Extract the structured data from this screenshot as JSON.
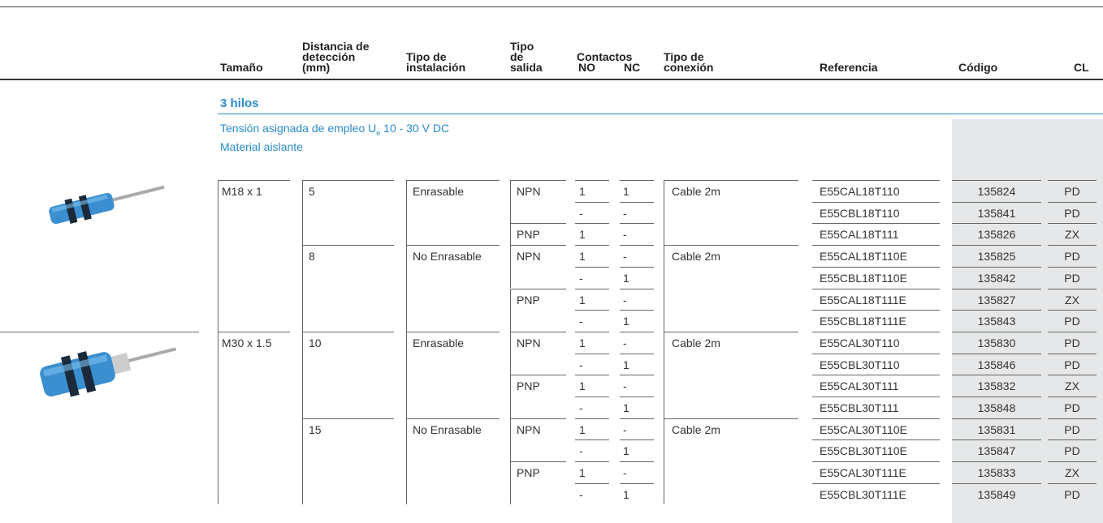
{
  "header": {
    "columns": [
      "Tamaño",
      "Distancia de\ndetección\n(mm)",
      "Tipo de\ninstalación",
      "Tipo\nde\nsalida",
      "Tipo de\nconexión",
      "Referencia",
      "Código",
      "CL"
    ],
    "contacts": {
      "label": "Contactos",
      "no": "NO",
      "nc": "NC"
    }
  },
  "section": {
    "title": "3 hilos",
    "voltage_prefix": "Tensión asignada de empleo U",
    "voltage_sub": "e",
    "voltage_suffix": " 10 - 30 V DC",
    "material": "Material aislante"
  },
  "table": {
    "groups": [
      {
        "size": "M18 x 1",
        "distances": [
          {
            "distance": "5",
            "installation": "Enrasable",
            "connection": "Cable 2m",
            "outputs": [
              {
                "type": "NPN",
                "rows": [
                  [
                    "1",
                    "1",
                    "E55CAL18T110",
                    "135824",
                    "PD"
                  ],
                  [
                    "-",
                    "-",
                    "E55CBL18T110",
                    "135841",
                    "PD"
                  ]
                ]
              },
              {
                "type": "PNP",
                "rows": [
                  [
                    "1",
                    "-",
                    "E55CAL18T111",
                    "135826",
                    "ZX"
                  ]
                ]
              }
            ]
          },
          {
            "distance": "8",
            "installation": "No Enrasable",
            "connection": "Cable 2m",
            "outputs": [
              {
                "type": "NPN",
                "rows": [
                  [
                    "1",
                    "-",
                    "E55CAL18T110E",
                    "135825",
                    "PD"
                  ],
                  [
                    "-",
                    "1",
                    "E55CBL18T110E",
                    "135842",
                    "PD"
                  ]
                ]
              },
              {
                "type": "PNP",
                "rows": [
                  [
                    "1",
                    "-",
                    "E55CAL18T111E",
                    "135827",
                    "ZX"
                  ],
                  [
                    "-",
                    "1",
                    "E55CBL18T111E",
                    "135843",
                    "PD"
                  ]
                ]
              }
            ]
          }
        ]
      },
      {
        "size": "M30 x 1.5",
        "distances": [
          {
            "distance": "10",
            "installation": "Enrasable",
            "connection": "Cable 2m",
            "outputs": [
              {
                "type": "NPN",
                "rows": [
                  [
                    "1",
                    "-",
                    "E55CAL30T110",
                    "135830",
                    "PD"
                  ],
                  [
                    "-",
                    "1",
                    "E55CBL30T110",
                    "135846",
                    "PD"
                  ]
                ]
              },
              {
                "type": "PNP",
                "rows": [
                  [
                    "1",
                    "-",
                    "E55CAL30T111",
                    "135832",
                    "ZX"
                  ],
                  [
                    "-",
                    "1",
                    "E55CBL30T111",
                    "135848",
                    "PD"
                  ]
                ]
              }
            ]
          },
          {
            "distance": "15",
            "installation": "No Enrasable",
            "connection": "Cable 2m",
            "outputs": [
              {
                "type": "NPN",
                "rows": [
                  [
                    "1",
                    "-",
                    "E55CAL30T110E",
                    "135831",
                    "PD"
                  ],
                  [
                    "-",
                    "1",
                    "E55CBL30T110E",
                    "135847",
                    "PD"
                  ]
                ]
              },
              {
                "type": "PNP",
                "rows": [
                  [
                    "1",
                    "-",
                    "E55CAL30T111E",
                    "135833",
                    "ZX"
                  ],
                  [
                    "-",
                    "1",
                    "E55CBL30T111E",
                    "135849",
                    "PD"
                  ]
                ]
              }
            ]
          }
        ]
      }
    ]
  }
}
